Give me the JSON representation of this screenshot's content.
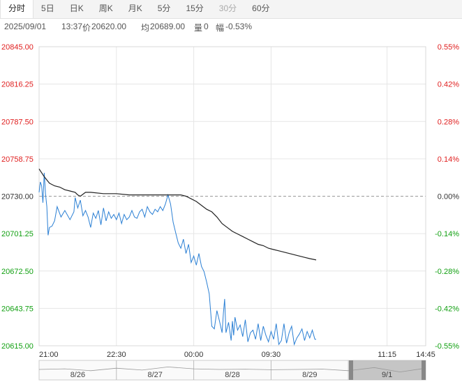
{
  "tabs": [
    {
      "label": "分时",
      "active": true
    },
    {
      "label": "5日"
    },
    {
      "label": "日K"
    },
    {
      "label": "周K"
    },
    {
      "label": "月K"
    },
    {
      "label": "5分"
    },
    {
      "label": "15分"
    },
    {
      "label": "30分",
      "disabled": true
    },
    {
      "label": "60分"
    }
  ],
  "info": {
    "datetime": "2025/09/01",
    "time": "13:37",
    "price_label": "价",
    "price": "20620.00",
    "avg_label": "均",
    "avg": "20689.00",
    "vol_label": "量",
    "vol": "0",
    "chg_label": "幅",
    "chg": "-0.53%"
  },
  "colors": {
    "up": "#e02020",
    "down": "#12a012",
    "neutral": "#333333",
    "price_line": "#2a7fd4",
    "avg_line": "#222222",
    "grid": "#e6e6e6"
  },
  "chart_data": {
    "type": "line",
    "title": "",
    "prev_close": 20730.0,
    "ylim": [
      20615.0,
      20845.0
    ],
    "y_ticks": [
      "20845.00",
      "20816.25",
      "20787.50",
      "20758.75",
      "20730.00",
      "20701.25",
      "20672.50",
      "20643.75",
      "20615.00"
    ],
    "pct_ticks": [
      "0.55%",
      "0.42%",
      "0.28%",
      "0.14%",
      "0.00%",
      "-0.14%",
      "-0.28%",
      "-0.42%",
      "-0.55%"
    ],
    "x_ticks": [
      "21:00",
      "22:30",
      "00:00",
      "09:30",
      "11:15",
      "14:45"
    ],
    "series": [
      {
        "style": "price",
        "x": [
          0,
          1,
          2,
          3,
          4,
          5,
          6,
          7,
          8,
          10,
          12,
          14,
          17,
          20,
          24,
          27,
          28,
          30,
          32,
          34,
          36,
          38,
          40,
          42,
          44,
          46,
          48,
          50,
          52,
          54,
          56,
          58,
          60,
          62,
          64,
          66,
          68,
          70,
          72,
          74,
          76,
          78,
          80,
          82,
          84,
          86,
          88,
          90,
          92,
          94,
          96,
          98,
          100,
          102,
          104,
          106,
          108,
          110,
          112,
          114,
          116,
          118,
          120,
          122,
          124,
          126,
          128,
          130,
          132,
          134,
          136,
          138,
          140,
          142,
          143,
          144,
          145,
          147,
          149,
          150,
          151,
          152,
          154,
          156,
          158,
          160,
          162,
          164,
          166,
          168,
          170,
          172,
          174,
          176,
          178,
          180,
          182,
          184,
          186,
          188,
          190,
          192,
          194,
          196,
          198,
          200,
          202,
          204,
          206,
          208,
          210,
          212,
          214,
          215
        ],
        "y": [
          20733,
          20741,
          20738,
          20725,
          20748,
          20732,
          20722,
          20700,
          20706,
          20707,
          20711,
          20722,
          20714,
          20719,
          20712,
          20718,
          20729,
          20721,
          20727,
          20715,
          20719,
          20714,
          20706,
          20717,
          20713,
          20719,
          20708,
          20721,
          20711,
          20718,
          20713,
          20716,
          20712,
          20717,
          20709,
          20716,
          20712,
          20714,
          20719,
          20714,
          20713,
          20718,
          20720,
          20714,
          20722,
          20718,
          20716,
          20720,
          20718,
          20722,
          20719,
          20724,
          20731,
          20724,
          20710,
          20702,
          20694,
          20690,
          20697,
          20686,
          20693,
          20679,
          20684,
          20677,
          20686,
          20676,
          20672,
          20664,
          20655,
          20630,
          20628,
          20642,
          20634,
          20625,
          20640,
          20651,
          20625,
          20633,
          20619,
          20634,
          20623,
          20637,
          20627,
          20631,
          20622,
          20635,
          20618,
          20625,
          20627,
          20620,
          20632,
          20619,
          20630,
          20623,
          20618,
          20626,
          20620,
          20632,
          20616,
          20619,
          20632,
          20617,
          20625,
          20630,
          20616,
          20621,
          20624,
          20628,
          20619,
          20626,
          20621,
          20627,
          20620,
          20620
        ]
      },
      {
        "style": "avg",
        "x": [
          0,
          4,
          8,
          12,
          16,
          20,
          24,
          28,
          30,
          32,
          36,
          40,
          50,
          60,
          70,
          80,
          90,
          100,
          110,
          114,
          118,
          122,
          126,
          130,
          134,
          138,
          142,
          146,
          150,
          154,
          158,
          162,
          166,
          170,
          174,
          178,
          182,
          186,
          190,
          194,
          198,
          202,
          206,
          210,
          215
        ],
        "y": [
          20751,
          20745,
          20740,
          20738,
          20737,
          20735,
          20734,
          20733,
          20731,
          20730,
          20733,
          20733,
          20732,
          20732,
          20731,
          20731,
          20731,
          20731,
          20731,
          20730,
          20728,
          20726,
          20723,
          20720,
          20718,
          20714,
          20709,
          20706,
          20703,
          20701,
          20699,
          20697,
          20695,
          20693,
          20692,
          20690,
          20689,
          20688,
          20687,
          20686,
          20685,
          20684,
          20683,
          20682,
          20681
        ]
      }
    ]
  },
  "overview": {
    "dates": [
      "8/26",
      "8/27",
      "8/28",
      "8/29",
      "9/1"
    ]
  }
}
